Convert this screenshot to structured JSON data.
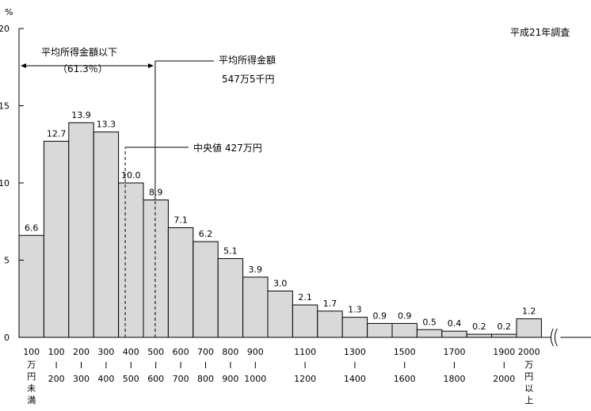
{
  "chart_data": {
    "type": "bar",
    "ylabel": "%",
    "ylim": [
      0,
      20
    ],
    "yticks": [
      0,
      5,
      10,
      15,
      20
    ],
    "survey_label": "平成21年調査",
    "values": [
      6.6,
      12.7,
      13.9,
      13.3,
      10.0,
      8.9,
      7.1,
      6.2,
      5.1,
      3.9,
      3.0,
      2.1,
      1.7,
      1.3,
      0.9,
      0.9,
      0.5,
      0.4,
      0.2,
      0.2,
      1.2
    ],
    "value_labels": [
      "6.6",
      "12.7",
      "13.9",
      "13.3",
      "10.0",
      "8.9",
      "7.1",
      "6.2",
      "5.1",
      "3.9",
      "3.0",
      "2.1",
      "1.7",
      "1.3",
      "0.9",
      "0.9",
      "0.5",
      "0.4",
      "0.2",
      "0.2",
      "1.2"
    ],
    "categories": [
      "100万円未満",
      "100～200",
      "200～300",
      "300～400",
      "400～500",
      "500～600",
      "600～700",
      "700～800",
      "800～900",
      "900～1000",
      "1000～1100",
      "1100～1200",
      "1200～1300",
      "1300～1400",
      "1400～1500",
      "1500～1600",
      "1600～1700",
      "1700～1800",
      "1800～1900",
      "1900～2000",
      "2000万円以上"
    ],
    "x_tick_labels": [
      {
        "bar": 0,
        "top": "100",
        "bottom": "万円未満"
      },
      {
        "bar": 1,
        "top": "100",
        "bottom": "200"
      },
      {
        "bar": 2,
        "top": "200",
        "bottom": "300"
      },
      {
        "bar": 3,
        "top": "300",
        "bottom": "400"
      },
      {
        "bar": 4,
        "top": "400",
        "bottom": "500"
      },
      {
        "bar": 5,
        "top": "500",
        "bottom": "600"
      },
      {
        "bar": 6,
        "top": "600",
        "bottom": "700"
      },
      {
        "bar": 7,
        "top": "700",
        "bottom": "800"
      },
      {
        "bar": 8,
        "top": "800",
        "bottom": "900"
      },
      {
        "bar": 9,
        "top": "900",
        "bottom": "1000"
      },
      {
        "bar": 11,
        "top": "1100",
        "bottom": "1200"
      },
      {
        "bar": 13,
        "top": "1300",
        "bottom": "1400"
      },
      {
        "bar": 15,
        "top": "1500",
        "bottom": "1600"
      },
      {
        "bar": 17,
        "top": "1700",
        "bottom": "1800"
      },
      {
        "bar": 19,
        "top": "1900",
        "bottom": "2000"
      },
      {
        "bar": 20,
        "top": "2000",
        "bottom": "万円以上"
      }
    ],
    "annotations": {
      "below_mean_label": "平均所得金額以下",
      "below_mean_pct": "（61.3％）",
      "mean_label": "平均所得金額",
      "mean_value": "547万5千円",
      "mean_value_manyen": 547.5,
      "median_label": "中央値 427万円",
      "median_value_manyen": 427
    },
    "colors": {
      "bar_fill": "#d9d9d9",
      "bar_stroke": "#000000"
    }
  }
}
